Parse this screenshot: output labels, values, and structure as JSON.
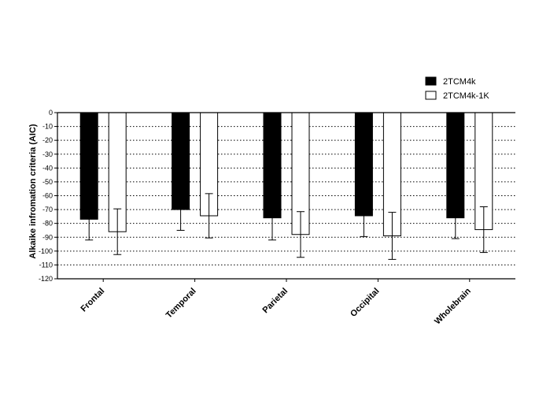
{
  "chart_data": {
    "type": "bar",
    "title": "",
    "xlabel": "",
    "ylabel": "Alkaike infromation criteria (AIC)",
    "ylim": [
      -120,
      0
    ],
    "yticks": [
      0,
      -10,
      -20,
      -30,
      -40,
      -50,
      -60,
      -70,
      -80,
      -90,
      -100,
      -110,
      -120
    ],
    "grid": "horizontal dotted",
    "legend_position": "top-right",
    "categories": [
      "Frontal",
      "Temporal",
      "Parietal",
      "Occipital",
      "Wholebrain"
    ],
    "series": [
      {
        "name": "2TCM4k",
        "color": "#000000",
        "values": [
          -77,
          -70,
          -76,
          -74.5,
          -76
        ],
        "error": [
          15,
          15,
          16,
          15,
          15
        ]
      },
      {
        "name": "2TCM4k-1K",
        "color": "#ffffff",
        "values": [
          -86,
          -74.5,
          -88,
          -89,
          -84.5
        ],
        "error": [
          16.5,
          16,
          16.5,
          17,
          16.5
        ]
      }
    ]
  }
}
